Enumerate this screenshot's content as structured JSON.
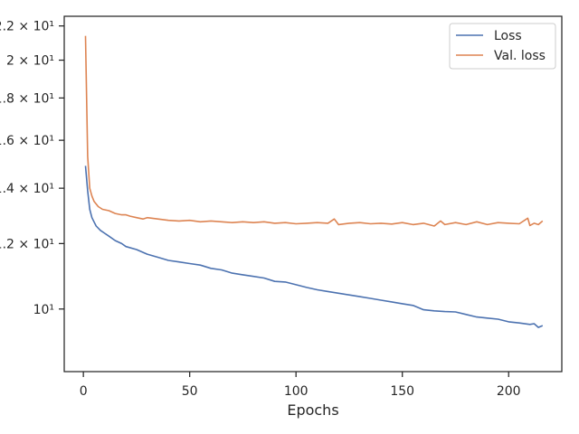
{
  "chart_data": {
    "type": "line",
    "xlabel": "Epochs",
    "ylabel": "",
    "xlim": [
      -9,
      225
    ],
    "ylim": [
      8.4,
      22.6
    ],
    "yscale": "log",
    "x_ticks": [
      0,
      50,
      100,
      150,
      200
    ],
    "x_tick_labels": [
      "0",
      "50",
      "100",
      "150",
      "200"
    ],
    "y_ticks": [
      10,
      12,
      14,
      16,
      18,
      20,
      22
    ],
    "y_tick_labels": [
      "10¹",
      "1.2 × 10¹",
      "1.4 × 10¹",
      "1.6 × 10¹",
      "1.8 × 10¹",
      "2 × 10¹",
      "2.2 × 10¹"
    ],
    "grid": false,
    "legend_position": "top-right",
    "series": [
      {
        "name": "Loss",
        "color": "#4c72b0",
        "x": [
          1,
          2,
          3,
          4,
          5,
          6,
          8,
          10,
          12,
          15,
          18,
          20,
          25,
          30,
          35,
          40,
          45,
          50,
          55,
          60,
          65,
          70,
          75,
          80,
          85,
          90,
          95,
          100,
          105,
          110,
          115,
          120,
          125,
          130,
          135,
          140,
          145,
          150,
          155,
          160,
          165,
          170,
          175,
          180,
          185,
          190,
          195,
          200,
          205,
          210,
          212,
          214,
          216
        ],
        "y": [
          14.9,
          13.9,
          13.2,
          12.9,
          12.75,
          12.6,
          12.45,
          12.35,
          12.25,
          12.1,
          12.0,
          11.9,
          11.8,
          11.65,
          11.55,
          11.45,
          11.4,
          11.35,
          11.3,
          11.2,
          11.15,
          11.05,
          11.0,
          10.95,
          10.9,
          10.8,
          10.78,
          10.7,
          10.62,
          10.55,
          10.5,
          10.45,
          10.4,
          10.35,
          10.3,
          10.25,
          10.2,
          10.15,
          10.1,
          9.98,
          9.95,
          9.93,
          9.92,
          9.85,
          9.78,
          9.75,
          9.72,
          9.65,
          9.62,
          9.58,
          9.6,
          9.5,
          9.55
        ]
      },
      {
        "name": "Val. loss",
        "color": "#dd8452",
        "x": [
          1,
          2,
          3,
          4,
          5,
          7,
          9,
          12,
          15,
          18,
          20,
          22,
          25,
          28,
          30,
          35,
          40,
          45,
          50,
          55,
          60,
          65,
          70,
          75,
          80,
          85,
          90,
          95,
          100,
          105,
          110,
          115,
          118,
          120,
          125,
          130,
          135,
          140,
          145,
          150,
          155,
          160,
          165,
          168,
          170,
          175,
          180,
          185,
          190,
          195,
          200,
          205,
          209,
          210,
          212,
          214,
          216
        ],
        "y": [
          21.4,
          15.3,
          14.0,
          13.7,
          13.5,
          13.3,
          13.2,
          13.15,
          13.05,
          13.0,
          13.0,
          12.95,
          12.9,
          12.85,
          12.9,
          12.85,
          12.8,
          12.78,
          12.8,
          12.75,
          12.78,
          12.75,
          12.72,
          12.75,
          12.72,
          12.75,
          12.7,
          12.72,
          12.68,
          12.7,
          12.72,
          12.7,
          12.85,
          12.65,
          12.7,
          12.72,
          12.68,
          12.7,
          12.67,
          12.72,
          12.65,
          12.7,
          12.6,
          12.78,
          12.65,
          12.72,
          12.65,
          12.75,
          12.65,
          12.72,
          12.7,
          12.68,
          12.88,
          12.62,
          12.7,
          12.65,
          12.78
        ]
      }
    ]
  }
}
